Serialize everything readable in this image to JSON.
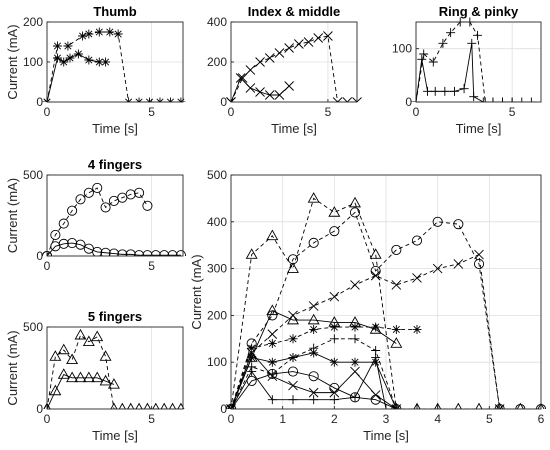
{
  "chart_data": [
    {
      "id": "thumb",
      "type": "line",
      "title": "Thumb",
      "xlabel": "Time [s]",
      "ylabel": "Current (mA)",
      "xlim": [
        0,
        6.5
      ],
      "ylim": [
        0,
        200
      ],
      "xticks": [
        0,
        5
      ],
      "yticks": [
        0,
        100,
        200
      ],
      "grid": true,
      "series": [
        {
          "marker": "asterisk",
          "dash": "solid",
          "x": [
            0,
            0.5,
            0.8,
            1.1,
            1.5,
            2.0,
            2.5,
            2.8
          ],
          "y": [
            0,
            110,
            100,
            110,
            120,
            105,
            100,
            100
          ]
        },
        {
          "marker": "asterisk",
          "dash": "dashed",
          "x": [
            0,
            0.5,
            1.0,
            1.7,
            2.0,
            2.5,
            3.0,
            3.4,
            3.9,
            4.4,
            4.9,
            5.4,
            5.9,
            6.4
          ],
          "y": [
            0,
            140,
            140,
            165,
            170,
            175,
            175,
            170,
            0,
            0,
            0,
            0,
            0,
            0
          ]
        }
      ]
    },
    {
      "id": "index",
      "type": "line",
      "title": "Index & middle",
      "xlabel": "Time [s]",
      "ylabel": "",
      "xlim": [
        0,
        6.5
      ],
      "ylim": [
        0,
        400
      ],
      "xticks": [
        0,
        5
      ],
      "yticks": [
        0,
        200,
        400
      ],
      "grid": true,
      "series": [
        {
          "marker": "x",
          "dash": "solid",
          "x": [
            0,
            0.5,
            1.0,
            1.5,
            2.0,
            2.5,
            3.0
          ],
          "y": [
            0,
            120,
            70,
            50,
            35,
            35,
            80
          ]
        },
        {
          "marker": "x",
          "dash": "dashed",
          "x": [
            0,
            0.6,
            1.0,
            1.5,
            2.0,
            2.5,
            3.0,
            3.5,
            4.0,
            4.5,
            5.0,
            5.5,
            6.0,
            6.5
          ],
          "y": [
            0,
            120,
            160,
            200,
            220,
            245,
            270,
            290,
            300,
            320,
            330,
            0,
            0,
            0
          ]
        }
      ]
    },
    {
      "id": "ring",
      "type": "line",
      "title": "Ring & pinky",
      "xlabel": "Time [s]",
      "ylabel": "",
      "xlim": [
        0,
        6.5
      ],
      "ylim": [
        0,
        150
      ],
      "xticks": [
        0,
        5
      ],
      "yticks": [
        0,
        100
      ],
      "grid": true,
      "series": [
        {
          "marker": "plus",
          "dash": "solid",
          "x": [
            0,
            0.3,
            0.6,
            1.0,
            1.5,
            2.0,
            2.5,
            2.9,
            3.0,
            3.5,
            4.0,
            4.5,
            5.0
          ],
          "y": [
            0,
            80,
            20,
            20,
            20,
            20,
            25,
            110,
            10,
            0,
            0,
            0,
            0
          ]
        },
        {
          "marker": "plus",
          "dash": "dashed",
          "x": [
            0,
            0.4,
            0.9,
            1.4,
            1.8,
            2.3,
            2.8,
            3.2,
            3.6,
            4.0,
            4.5,
            5.0,
            5.5,
            6.0
          ],
          "y": [
            0,
            90,
            75,
            110,
            130,
            150,
            150,
            125,
            0,
            0,
            0,
            0,
            0,
            0
          ]
        }
      ]
    },
    {
      "id": "four",
      "type": "line",
      "title": "4 fingers",
      "xlabel": "",
      "ylabel": "Current (mA)",
      "xlim": [
        0,
        6.5
      ],
      "ylim": [
        0,
        500
      ],
      "xticks": [
        0,
        5
      ],
      "yticks": [
        0,
        500
      ],
      "grid": true,
      "series": [
        {
          "marker": "circle",
          "dash": "solid",
          "x": [
            0,
            0.4,
            0.8,
            1.2,
            1.6,
            2.0,
            2.4,
            2.8,
            3.2,
            3.6,
            4.0,
            4.4,
            4.8,
            5.2,
            5.6,
            6.0,
            6.4
          ],
          "y": [
            0,
            60,
            75,
            80,
            70,
            45,
            25,
            20,
            15,
            10,
            10,
            5,
            5,
            5,
            5,
            5,
            5
          ]
        },
        {
          "marker": "circle",
          "dash": "dashed",
          "x": [
            0,
            0.4,
            0.8,
            1.2,
            1.6,
            2.0,
            2.4,
            2.8,
            3.2,
            3.6,
            4.0,
            4.4,
            4.8
          ],
          "y": [
            0,
            130,
            200,
            280,
            350,
            390,
            420,
            300,
            340,
            360,
            380,
            390,
            310
          ]
        }
      ]
    },
    {
      "id": "five",
      "type": "line",
      "title": "5 fingers",
      "xlabel": "Time [s]",
      "ylabel": "Current (mA)",
      "xlim": [
        0,
        6.5
      ],
      "ylim": [
        0,
        500
      ],
      "xticks": [
        0,
        5
      ],
      "yticks": [
        0,
        500
      ],
      "grid": true,
      "series": [
        {
          "marker": "triangle",
          "dash": "solid",
          "x": [
            0,
            0.4,
            0.8,
            1.2,
            1.6,
            2.0,
            2.4,
            2.8,
            3.2
          ],
          "y": [
            0,
            110,
            210,
            190,
            190,
            190,
            190,
            170,
            150
          ]
        },
        {
          "marker": "triangle",
          "dash": "dashed",
          "x": [
            0,
            0.4,
            0.8,
            1.2,
            1.6,
            2.0,
            2.4,
            2.8,
            3.2,
            3.6,
            4.0,
            4.4,
            4.8,
            5.2,
            5.6,
            6.0,
            6.4
          ],
          "y": [
            0,
            320,
            360,
            300,
            450,
            410,
            440,
            320,
            0,
            0,
            0,
            0,
            0,
            0,
            0,
            0,
            0
          ]
        }
      ]
    },
    {
      "id": "main",
      "type": "line",
      "title": "",
      "xlabel": "Time [s]",
      "ylabel": "Current (mA)",
      "xlim": [
        0,
        6
      ],
      "ylim": [
        0,
        500
      ],
      "xticks": [
        0,
        1,
        2,
        3,
        4,
        5,
        6
      ],
      "yticks": [
        0,
        100,
        200,
        300,
        400,
        500
      ],
      "grid": true,
      "series": [
        {
          "marker": "triangle",
          "dash": "dashed",
          "x": [
            0,
            0.4,
            0.8,
            1.2,
            1.6,
            2.0,
            2.4,
            2.8,
            3.2,
            3.6,
            4.0,
            4.4,
            4.8,
            5.2,
            5.6,
            6.0
          ],
          "y": [
            0,
            330,
            370,
            300,
            450,
            420,
            440,
            330,
            0,
            0,
            0,
            0,
            0,
            0,
            0,
            0
          ]
        },
        {
          "marker": "circle",
          "dash": "dashed",
          "x": [
            0,
            0.4,
            0.8,
            1.2,
            1.6,
            2.0,
            2.4,
            2.8,
            3.2,
            3.6,
            4.0,
            4.4,
            4.8,
            5.2,
            5.6,
            6.0
          ],
          "y": [
            0,
            140,
            200,
            320,
            355,
            380,
            420,
            295,
            340,
            360,
            400,
            395,
            310,
            0,
            0,
            0
          ]
        },
        {
          "marker": "x",
          "dash": "dashed",
          "x": [
            0,
            0.4,
            0.8,
            1.2,
            1.6,
            2.0,
            2.4,
            2.8,
            3.2,
            3.6,
            4.0,
            4.4,
            4.8,
            5.2
          ],
          "y": [
            0,
            120,
            160,
            200,
            220,
            240,
            265,
            285,
            265,
            280,
            300,
            310,
            330,
            0
          ]
        },
        {
          "marker": "triangle",
          "dash": "solid",
          "x": [
            0,
            0.4,
            0.8,
            1.2,
            1.6,
            2.0,
            2.4,
            2.8,
            3.2
          ],
          "y": [
            0,
            110,
            210,
            190,
            190,
            185,
            185,
            170,
            140
          ]
        },
        {
          "marker": "asterisk",
          "dash": "dashed",
          "x": [
            0,
            0.4,
            0.8,
            1.2,
            1.6,
            2.0,
            2.4,
            2.8,
            3.2,
            3.6
          ],
          "y": [
            0,
            130,
            140,
            150,
            170,
            175,
            175,
            175,
            170,
            170
          ]
        },
        {
          "marker": "plus",
          "dash": "dashed",
          "x": [
            0,
            0.4,
            0.8,
            1.2,
            1.6,
            2.0,
            2.4,
            2.8,
            3.2,
            3.6,
            4.0
          ],
          "y": [
            0,
            90,
            75,
            110,
            130,
            150,
            150,
            125,
            0,
            0,
            0
          ]
        },
        {
          "marker": "asterisk",
          "dash": "solid",
          "x": [
            0,
            0.4,
            0.8,
            1.2,
            1.6,
            2.0,
            2.4,
            2.8,
            3.2
          ],
          "y": [
            0,
            110,
            100,
            110,
            120,
            100,
            100,
            100,
            0
          ]
        },
        {
          "marker": "x",
          "dash": "solid",
          "x": [
            0,
            0.4,
            0.8,
            1.2,
            1.6,
            2.0,
            2.4,
            2.8,
            3.2
          ],
          "y": [
            0,
            120,
            70,
            50,
            35,
            35,
            80,
            30,
            0
          ]
        },
        {
          "marker": "circle",
          "dash": "solid",
          "x": [
            0,
            0.4,
            0.8,
            1.2,
            1.6,
            2.0,
            2.4,
            2.8,
            3.2
          ],
          "y": [
            0,
            60,
            75,
            80,
            70,
            45,
            25,
            20,
            0
          ]
        },
        {
          "marker": "plus",
          "dash": "solid",
          "x": [
            0,
            0.4,
            0.8,
            1.2,
            1.6,
            2.0,
            2.4,
            2.8,
            3.0
          ],
          "y": [
            0,
            80,
            20,
            20,
            20,
            20,
            25,
            110,
            0
          ]
        }
      ]
    }
  ]
}
